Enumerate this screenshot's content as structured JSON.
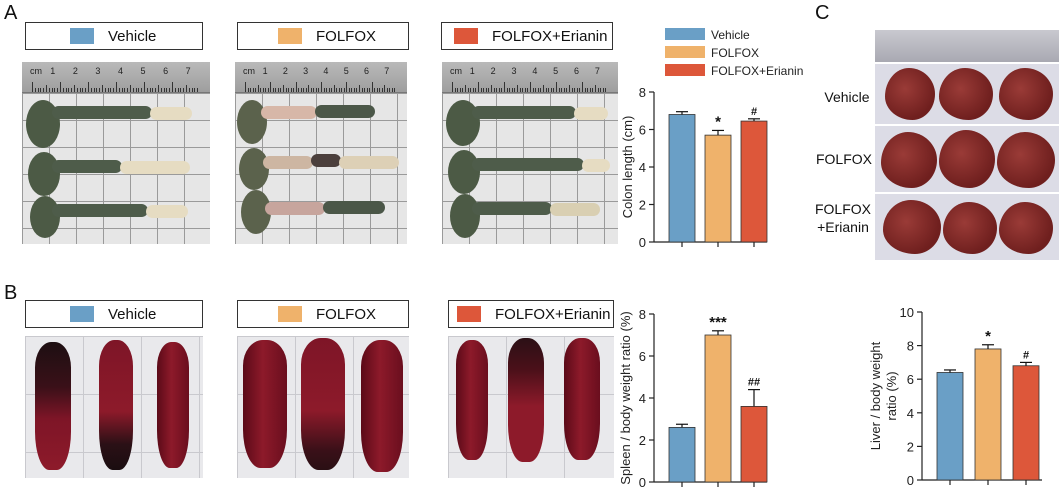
{
  "panels": {
    "a": "A",
    "b": "B",
    "c": "C"
  },
  "groups": {
    "vehicle": {
      "label": "Vehicle",
      "color": "#6a9fc6"
    },
    "folfox": {
      "label": "FOLFOX",
      "color": "#efb26b"
    },
    "folfox_erianin": {
      "label": "FOLFOX+Erianin",
      "color": "#dd573a"
    }
  },
  "ruler": {
    "cm": "cm",
    "numbers": [
      "1",
      "2",
      "3",
      "4",
      "5",
      "6",
      "7"
    ]
  },
  "liver_rows": {
    "r1": "Vehicle",
    "r2": "FOLFOX",
    "r3a": "FOLFOX",
    "r3b": "+Erianin"
  },
  "chart_data": [
    {
      "id": "colon",
      "type": "bar",
      "categories": [
        "Vehicle",
        "FOLFOX",
        "FOLFOX+Erianin"
      ],
      "values": [
        6.8,
        5.7,
        6.45
      ],
      "errors": [
        0.15,
        0.25,
        0.12
      ],
      "annotations": [
        "",
        "*",
        "#"
      ],
      "ylabel": "Colon length (cm)",
      "ylim": [
        0,
        8
      ],
      "yticks": [
        "0",
        "2",
        "4",
        "6",
        "8"
      ],
      "legend": [
        "Vehicle",
        "FOLFOX",
        "FOLFOX+Erianin"
      ],
      "legend_position": "top"
    },
    {
      "id": "spleen",
      "type": "bar",
      "categories": [
        "Vehicle",
        "FOLFOX",
        "FOLFOX+Erianin"
      ],
      "values": [
        2.6,
        7.0,
        3.6
      ],
      "errors": [
        0.15,
        0.2,
        0.8
      ],
      "annotations": [
        "",
        "***",
        "##"
      ],
      "ylabel": "Spleen / body weight ratio (%)",
      "ylim": [
        0,
        8
      ],
      "yticks": [
        "0",
        "2",
        "4",
        "6",
        "8"
      ]
    },
    {
      "id": "liver",
      "type": "bar",
      "categories": [
        "Vehicle",
        "FOLFOX",
        "FOLFOX+Erianin"
      ],
      "values": [
        6.4,
        7.8,
        6.8
      ],
      "errors": [
        0.15,
        0.25,
        0.2
      ],
      "annotations": [
        "",
        "*",
        "#"
      ],
      "ylabel_lines": [
        "Liver / body weight",
        "ratio (%)"
      ],
      "ylim": [
        0,
        10
      ],
      "yticks": [
        "0",
        "2",
        "4",
        "6",
        "8",
        "10"
      ]
    }
  ]
}
